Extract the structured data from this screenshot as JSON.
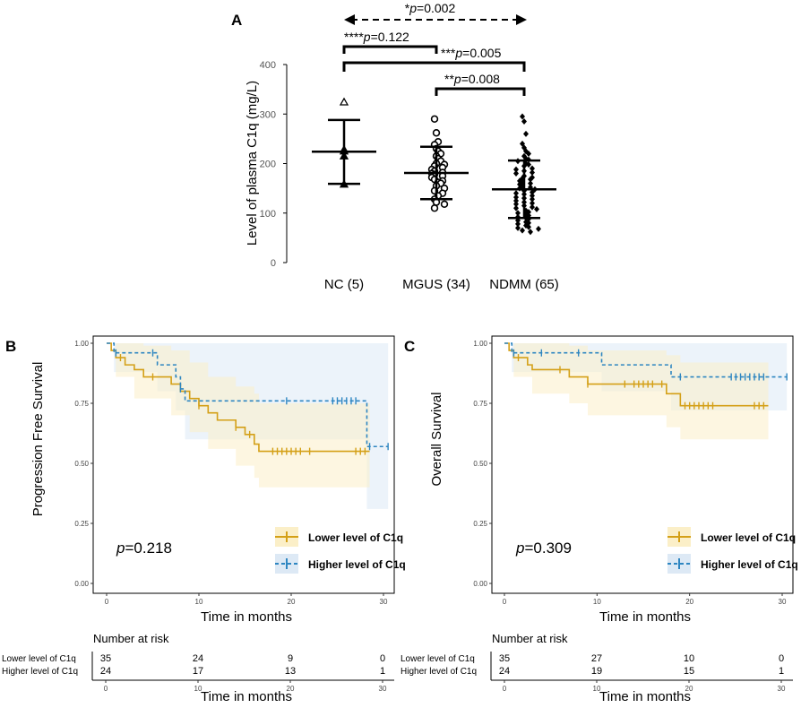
{
  "colors": {
    "lower": "#d4a017",
    "higher": "#2e86c1",
    "lower_fill": "#fbefc8",
    "higher_fill": "#dde9f5",
    "overlap_fill": "#e6ecd9"
  },
  "chart_data": [
    {
      "panel": "A",
      "type": "scatter",
      "ylabel": "Level of plasma C1q (mg/L)",
      "ylim": [
        0,
        400
      ],
      "yticks": [
        "0",
        "100",
        "200",
        "300",
        "400"
      ],
      "categories": [
        "NC (5)",
        "MGUS (34)",
        "NDMM (65)"
      ],
      "groups": [
        {
          "name": "NC",
          "marker": "triangle",
          "mean": 224,
          "sd_low": 159,
          "sd_high": 288,
          "points": [
            324,
            228,
            225,
            215,
            158
          ]
        },
        {
          "name": "MGUS",
          "marker": "circle",
          "mean": 181,
          "sd_low": 128,
          "sd_high": 234,
          "points": [
            290,
            262,
            244,
            238,
            230,
            225,
            220,
            215,
            210,
            205,
            200,
            198,
            195,
            192,
            188,
            185,
            182,
            180,
            178,
            175,
            172,
            168,
            165,
            162,
            160,
            155,
            150,
            145,
            140,
            135,
            128,
            122,
            118,
            110
          ]
        },
        {
          "name": "NDMM",
          "marker": "diamond",
          "mean": 148,
          "sd_low": 90,
          "sd_high": 206,
          "points": [
            295,
            285,
            260,
            240,
            232,
            225,
            220,
            215,
            210,
            208,
            205,
            200,
            198,
            195,
            190,
            188,
            185,
            182,
            180,
            175,
            172,
            170,
            168,
            165,
            162,
            160,
            158,
            155,
            152,
            150,
            148,
            145,
            142,
            140,
            138,
            135,
            132,
            130,
            128,
            125,
            122,
            120,
            118,
            115,
            112,
            110,
            108,
            105,
            102,
            100,
            98,
            95,
            92,
            90,
            88,
            85,
            82,
            80,
            78,
            75,
            72,
            70,
            68,
            65,
            62
          ]
        }
      ],
      "comparisons": [
        {
          "label_prefix": "*",
          "label_p": "p",
          "label_value": "=0.002",
          "from": "NC",
          "to": "NDMM",
          "style": "dashed-double-arrow"
        },
        {
          "label_prefix": "****",
          "label_p": "p",
          "label_value": "=0.122",
          "from": "NC",
          "to": "MGUS",
          "style": "bracket"
        },
        {
          "label_prefix": "***",
          "label_p": "p",
          "label_value": "=0.005",
          "from": "NC",
          "to": "NDMM",
          "style": "bracket"
        },
        {
          "label_prefix": "**",
          "label_p": "p",
          "label_value": "=0.008",
          "from": "MGUS",
          "to": "NDMM",
          "style": "bracket"
        }
      ]
    },
    {
      "panel": "B",
      "type": "line",
      "ylabel": "Progression Free Survival",
      "xlabel": "Time in months",
      "xlim": [
        0,
        30
      ],
      "ylim": [
        0,
        1
      ],
      "xticks": [
        "0",
        "10",
        "20",
        "30"
      ],
      "yticks": [
        "0.00",
        "0.25",
        "0.50",
        "0.75",
        "1.00"
      ],
      "pvalue_p": "p",
      "pvalue_value": "=0.218",
      "series": [
        {
          "name": "Lower level of C1q",
          "key": "lower",
          "steps": [
            [
              0,
              1.0
            ],
            [
              0.5,
              0.97
            ],
            [
              1,
              0.94
            ],
            [
              2,
              0.91
            ],
            [
              3,
              0.89
            ],
            [
              4,
              0.86
            ],
            [
              7,
              0.83
            ],
            [
              8,
              0.8
            ],
            [
              9,
              0.77
            ],
            [
              10,
              0.74
            ],
            [
              11,
              0.71
            ],
            [
              12,
              0.68
            ],
            [
              14,
              0.65
            ],
            [
              15,
              0.62
            ],
            [
              16,
              0.58
            ],
            [
              16.5,
              0.55
            ],
            [
              28.5,
              0.55
            ]
          ],
          "ci_low": [
            [
              0,
              1.0
            ],
            [
              1,
              0.86
            ],
            [
              3,
              0.77
            ],
            [
              7,
              0.7
            ],
            [
              9,
              0.63
            ],
            [
              11,
              0.56
            ],
            [
              14,
              0.49
            ],
            [
              16,
              0.44
            ],
            [
              16.5,
              0.4
            ],
            [
              28.5,
              0.4
            ]
          ],
          "ci_high": [
            [
              0,
              1.0
            ],
            [
              2,
              1.0
            ],
            [
              4,
              0.99
            ],
            [
              7,
              0.97
            ],
            [
              9,
              0.92
            ],
            [
              11,
              0.86
            ],
            [
              14,
              0.82
            ],
            [
              16,
              0.79
            ],
            [
              16.5,
              0.75
            ],
            [
              28.5,
              0.75
            ]
          ],
          "censor": [
            1.5,
            5,
            10,
            14,
            15.5,
            18,
            18.5,
            19,
            19.5,
            20,
            20.5,
            21,
            22,
            27,
            27.5,
            28
          ]
        },
        {
          "name": "Higher level of C1q",
          "key": "higher",
          "steps": [
            [
              0,
              1.0
            ],
            [
              0.8,
              0.96
            ],
            [
              5.5,
              0.91
            ],
            [
              7.5,
              0.86
            ],
            [
              8,
              0.81
            ],
            [
              8.5,
              0.76
            ],
            [
              28,
              0.76
            ],
            [
              28.2,
              0.57
            ],
            [
              30.5,
              0.57
            ]
          ],
          "ci_low": [
            [
              0,
              1.0
            ],
            [
              0.8,
              0.88
            ],
            [
              5.5,
              0.8
            ],
            [
              7.5,
              0.72
            ],
            [
              8.5,
              0.6
            ],
            [
              28,
              0.6
            ],
            [
              28.2,
              0.31
            ],
            [
              30.5,
              0.31
            ]
          ],
          "ci_high": [
            [
              0,
              1.0
            ],
            [
              28,
              1.0
            ],
            [
              28.2,
              1.0
            ],
            [
              30.5,
              1.0
            ]
          ],
          "censor": [
            1,
            5,
            8,
            19.5,
            24.5,
            25,
            25.5,
            26,
            26.5,
            27,
            28.5,
            30.5
          ]
        }
      ],
      "legend": "bottom-right",
      "risk_table": {
        "title": "Number at risk",
        "rows": [
          {
            "label": "Lower level of C1q",
            "values": [
              "35",
              "24",
              "9",
              "0"
            ]
          },
          {
            "label": "Higher level of C1q",
            "values": [
              "24",
              "17",
              "13",
              "1"
            ]
          }
        ],
        "xlabel": "Time in months",
        "xticks": [
          "0",
          "10",
          "20",
          "30"
        ]
      }
    },
    {
      "panel": "C",
      "type": "line",
      "ylabel": "Overall Survival",
      "xlabel": "Time in months",
      "xlim": [
        0,
        30
      ],
      "ylim": [
        0,
        1
      ],
      "xticks": [
        "0",
        "10",
        "20",
        "30"
      ],
      "yticks": [
        "0.00",
        "0.25",
        "0.50",
        "0.75",
        "1.00"
      ],
      "pvalue_p": "p",
      "pvalue_value": "=0.309",
      "series": [
        {
          "name": "Lower level of C1q",
          "key": "lower",
          "steps": [
            [
              0,
              1.0
            ],
            [
              0.5,
              0.97
            ],
            [
              1,
              0.94
            ],
            [
              2.5,
              0.91
            ],
            [
              3,
              0.89
            ],
            [
              7,
              0.86
            ],
            [
              9,
              0.83
            ],
            [
              17,
              0.83
            ],
            [
              17.5,
              0.79
            ],
            [
              19,
              0.74
            ],
            [
              28.5,
              0.74
            ]
          ],
          "ci_low": [
            [
              0,
              1.0
            ],
            [
              1,
              0.86
            ],
            [
              3,
              0.79
            ],
            [
              7,
              0.75
            ],
            [
              9,
              0.7
            ],
            [
              17.5,
              0.65
            ],
            [
              19,
              0.6
            ],
            [
              28.5,
              0.6
            ]
          ],
          "ci_high": [
            [
              0,
              1.0
            ],
            [
              3,
              1.0
            ],
            [
              7,
              0.99
            ],
            [
              9,
              0.97
            ],
            [
              17.5,
              0.95
            ],
            [
              19,
              0.92
            ],
            [
              28.5,
              0.92
            ]
          ],
          "censor": [
            1.5,
            6,
            9,
            13,
            14,
            14.5,
            15,
            15.5,
            16,
            17,
            19.5,
            20,
            20.5,
            21,
            21.5,
            22,
            22.5,
            27,
            27.5,
            28
          ]
        },
        {
          "name": "Higher level of C1q",
          "key": "higher",
          "steps": [
            [
              0,
              1.0
            ],
            [
              0.8,
              0.96
            ],
            [
              10.5,
              0.91
            ],
            [
              18,
              0.86
            ],
            [
              30.5,
              0.86
            ]
          ],
          "ci_low": [
            [
              0,
              1.0
            ],
            [
              0.8,
              0.88
            ],
            [
              10.5,
              0.8
            ],
            [
              18,
              0.72
            ],
            [
              30.5,
              0.72
            ]
          ],
          "ci_high": [
            [
              0,
              1.0
            ],
            [
              30.5,
              1.0
            ]
          ],
          "censor": [
            1,
            4,
            8,
            19,
            24.5,
            25,
            25.5,
            26,
            26.5,
            27,
            27.5,
            28,
            30.5
          ]
        }
      ],
      "legend": "bottom-right",
      "risk_table": {
        "title": "Number at risk",
        "rows": [
          {
            "label": "Lower level of C1q",
            "values": [
              "35",
              "27",
              "10",
              "0"
            ]
          },
          {
            "label": "Higher level of C1q",
            "values": [
              "24",
              "19",
              "15",
              "1"
            ]
          }
        ],
        "xlabel": "Time in months",
        "xticks": [
          "0",
          "10",
          "20",
          "30"
        ]
      }
    }
  ]
}
